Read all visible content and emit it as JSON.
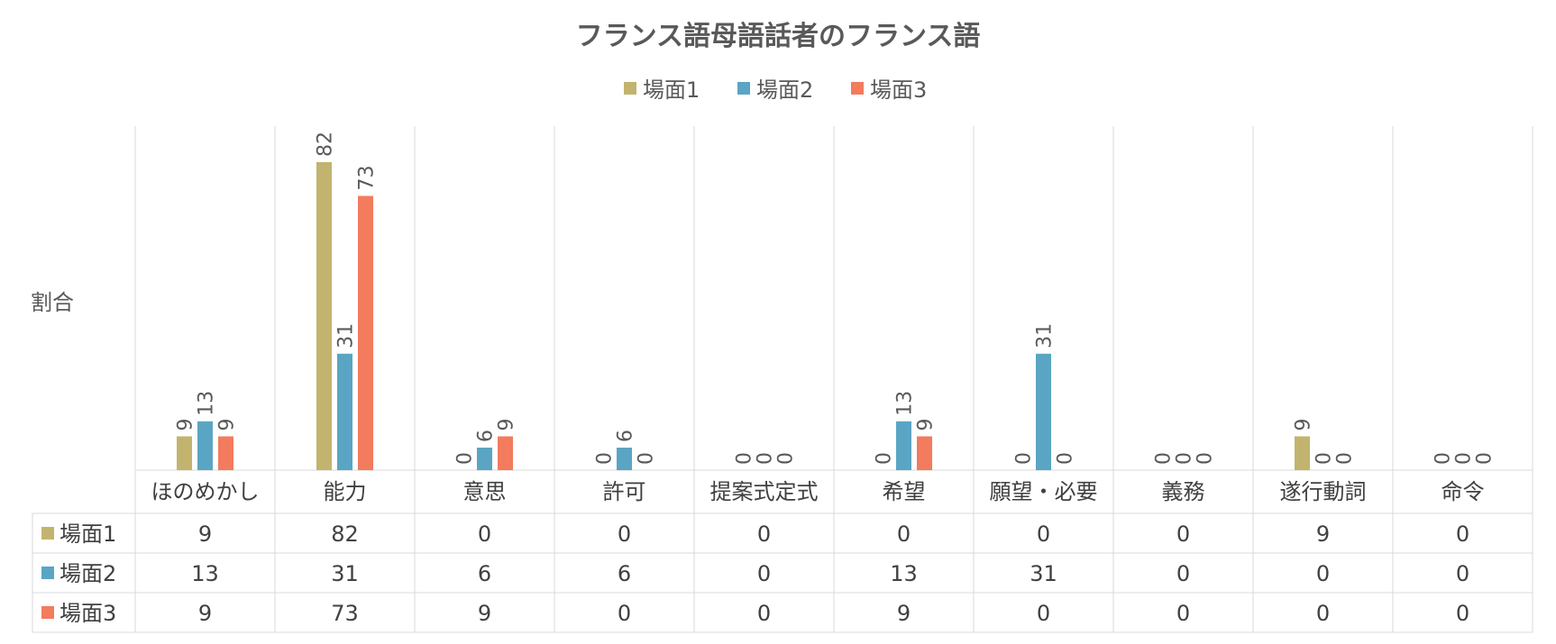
{
  "chart_data": {
    "type": "bar",
    "title": "フランス語母語話者のフランス語",
    "ylabel": "割合",
    "xlabel": "",
    "categories": [
      "ほのめかし",
      "能力",
      "意思",
      "許可",
      "提案式定式",
      "希望",
      "願望・必要",
      "義務",
      "遂行動詞",
      "命令"
    ],
    "series": [
      {
        "name": "場面1",
        "color": "#c2b46e",
        "values": [
          9,
          82,
          0,
          0,
          0,
          0,
          0,
          0,
          9,
          0
        ]
      },
      {
        "name": "場面2",
        "color": "#5aa5c3",
        "values": [
          13,
          31,
          6,
          6,
          0,
          13,
          31,
          0,
          0,
          0
        ]
      },
      {
        "name": "場面3",
        "color": "#f37b5e",
        "values": [
          9,
          73,
          9,
          0,
          0,
          9,
          0,
          0,
          0,
          0
        ]
      }
    ],
    "ylim": [
      0,
      82
    ],
    "legend": "top",
    "data_table": true,
    "grid": "vertical"
  }
}
